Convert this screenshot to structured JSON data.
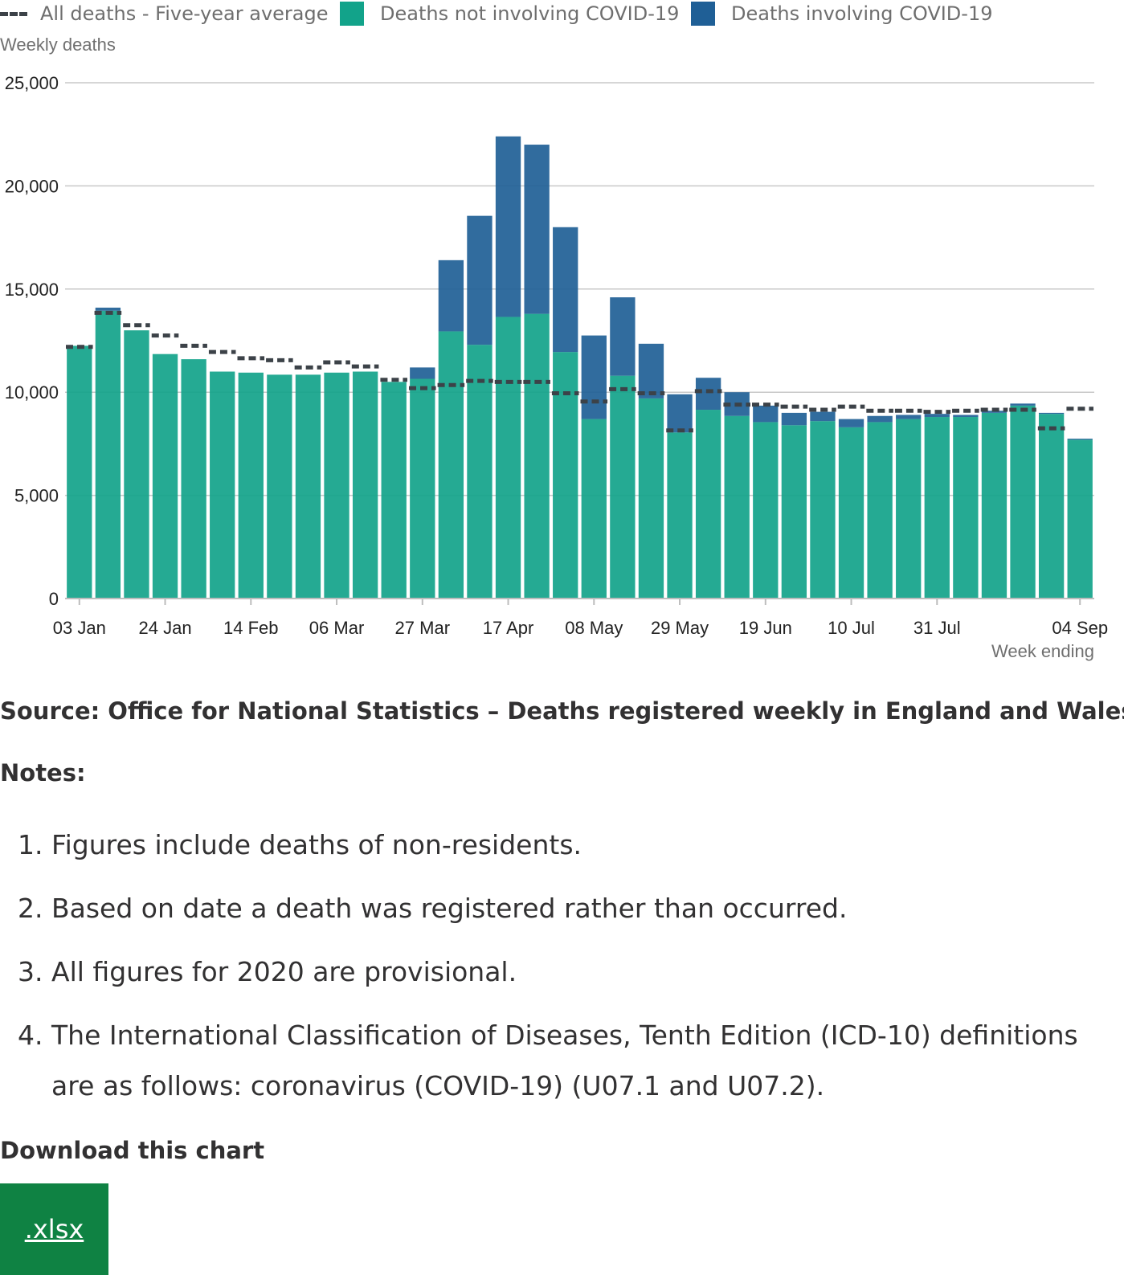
{
  "legend": [
    {
      "label": "All deaths - Five-year average",
      "kind": "dash",
      "color": "#3c4248"
    },
    {
      "label": "Deaths not involving COVID-19",
      "kind": "swatch",
      "color": "#12a38a"
    },
    {
      "label": "Deaths involving COVID-19",
      "kind": "swatch",
      "color": "#1f5f96"
    }
  ],
  "chart_data": {
    "type": "bar",
    "stacked": true,
    "ylabel": "Weekly deaths",
    "xlabel": "Week ending",
    "ylim": [
      0,
      25000
    ],
    "yticks": [
      0,
      5000,
      10000,
      15000,
      20000,
      25000
    ],
    "ytick_labels": [
      "0",
      "5,000",
      "10,000",
      "15,000",
      "20,000",
      "25,000"
    ],
    "grid": true,
    "categories": [
      "03 Jan",
      "10 Jan",
      "17 Jan",
      "24 Jan",
      "31 Jan",
      "07 Feb",
      "14 Feb",
      "21 Feb",
      "28 Feb",
      "06 Mar",
      "13 Mar",
      "20 Mar",
      "27 Mar",
      "03 Apr",
      "10 Apr",
      "17 Apr",
      "24 Apr",
      "01 May",
      "08 May",
      "15 May",
      "22 May",
      "29 May",
      "05 Jun",
      "12 Jun",
      "19 Jun",
      "26 Jun",
      "03 Jul",
      "10 Jul",
      "17 Jul",
      "24 Jul",
      "31 Jul",
      "07 Aug",
      "14 Aug",
      "21 Aug",
      "28 Aug",
      "04 Sep"
    ],
    "xtick_labels": [
      {
        "index": 0,
        "label": "03 Jan"
      },
      {
        "index": 3,
        "label": "24 Jan"
      },
      {
        "index": 6,
        "label": "14 Feb"
      },
      {
        "index": 9,
        "label": "06 Mar"
      },
      {
        "index": 12,
        "label": "27 Mar"
      },
      {
        "index": 15,
        "label": "17 Apr"
      },
      {
        "index": 18,
        "label": "08 May"
      },
      {
        "index": 21,
        "label": "29 May"
      },
      {
        "index": 24,
        "label": "19 Jun"
      },
      {
        "index": 27,
        "label": "10 Jul"
      },
      {
        "index": 30,
        "label": "31 Jul"
      },
      {
        "index": 35,
        "label": "04 Sep"
      }
    ],
    "series": [
      {
        "name": "Deaths not involving COVID-19",
        "color": "#12a38a",
        "values": [
          12250,
          13950,
          13000,
          11850,
          11600,
          11000,
          10950,
          10850,
          10850,
          10950,
          11000,
          10500,
          10650,
          12950,
          12300,
          13650,
          13800,
          11950,
          8700,
          10800,
          9700,
          8050,
          9150,
          8850,
          8550,
          8400,
          8600,
          8300,
          8550,
          8700,
          8800,
          8800,
          9000,
          9350,
          8950,
          7700
        ]
      },
      {
        "name": "Deaths involving COVID-19",
        "color": "#1f5f96",
        "values": [
          0,
          150,
          0,
          0,
          0,
          0,
          0,
          0,
          0,
          0,
          0,
          0,
          550,
          3450,
          6250,
          8750,
          8200,
          6050,
          4050,
          3800,
          2650,
          1850,
          1550,
          1150,
          800,
          600,
          450,
          400,
          300,
          200,
          150,
          100,
          100,
          100,
          50,
          50
        ]
      },
      {
        "name": "All deaths - Five-year average",
        "type": "line",
        "style": "dashed",
        "color": "#3c4248",
        "values": [
          12200,
          13850,
          13250,
          12750,
          12250,
          11950,
          11650,
          11550,
          11200,
          11450,
          11250,
          10600,
          10200,
          10350,
          10550,
          10500,
          10500,
          9950,
          9550,
          10150,
          9950,
          8150,
          10050,
          9400,
          9400,
          9300,
          9150,
          9300,
          9100,
          9100,
          9050,
          9100,
          9150,
          9150,
          8250,
          9200
        ]
      }
    ]
  },
  "source": "Source: Office for National Statistics – Deaths registered weekly in England and Wales",
  "notes": {
    "title": "Notes:",
    "items": [
      {
        "num": "1.",
        "text": "Figures include deaths of non-residents."
      },
      {
        "num": "2.",
        "text": "Based on date a death was registered rather than occurred."
      },
      {
        "num": "3.",
        "text": "All figures for 2020 are provisional."
      },
      {
        "num": "4.",
        "text": "The International Classification of Diseases, Tenth Edition (ICD-10) definitions are as follows: coronavirus (COVID-19) (U07.1 and U07.2)."
      }
    ]
  },
  "download": {
    "title": "Download this chart",
    "button_label": ".xlsx"
  }
}
